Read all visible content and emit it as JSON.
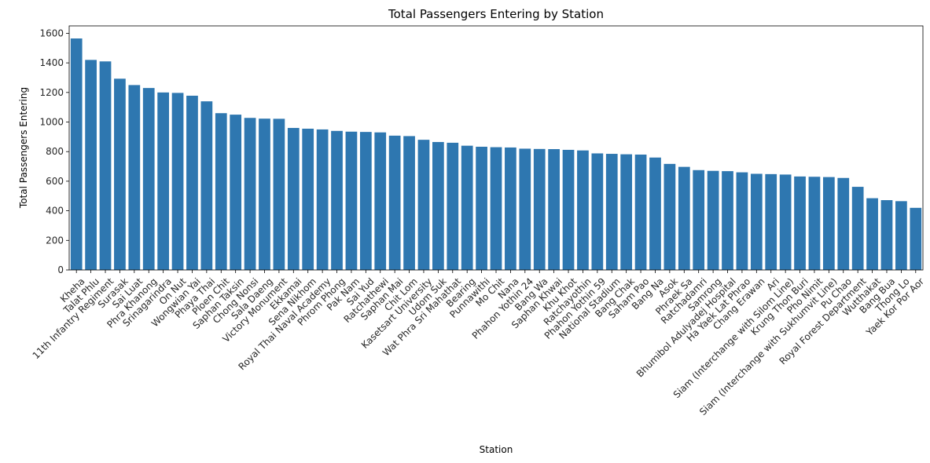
{
  "chart_data": {
    "type": "bar",
    "title": "Total Passengers Entering by Station",
    "xlabel": "Station",
    "ylabel": "Total Passengers Entering",
    "ylim": [
      0,
      1650
    ],
    "yticks": [
      0,
      200,
      400,
      600,
      800,
      1000,
      1200,
      1400,
      1600
    ],
    "bar_color": "#2e77b0",
    "grid": false,
    "categories": [
      "Kheha",
      "Talat Phlu",
      "11th Infantry Regiment",
      "Surasak",
      "Sai Luat",
      "Phra Khanong",
      "Srinagarindra",
      "On Nut",
      "Wongwian Yai",
      "Phaya Thai",
      "Ploen Chit",
      "Saphan Taksin",
      "Chong Nonsi",
      "Sala Daeng",
      "Victory Monument",
      "Ekkamai",
      "Sena Nikhom",
      "Royal Thai Naval Academy",
      "Phrom Phong",
      "Pak Nam",
      "Sai Yud",
      "Ratchathewi",
      "Saphan Mai",
      "Chit Lom",
      "Kasetsart University",
      "Udom Suk",
      "Wat Phra Sri Mahathat",
      "Bearing",
      "Punnawithi",
      "Mo Chit",
      "Nana",
      "Phahon Yothin 24",
      "Bang Wa",
      "Saphan Khwai",
      "Khu Khot",
      "Ratchayothin",
      "Phahon Yothin 59",
      "National Stadium",
      "Bang Chak",
      "Saham Pao",
      "Bang Na",
      "Asok",
      "Phraek Sa",
      "Ratchadamri",
      "Samrong",
      "Bhumibol Adulyadej Hospital",
      "Ha Yaek Lat Phrao",
      "Chang Erawan",
      "Ari",
      "Siam (Interchange with Silom Line)",
      "Krung Thon Buri",
      "Pho Nimit",
      "Siam (Interchange with Sukhumvit Line)",
      "Pu Chao",
      "Royal Forest Department",
      "Wutthakat",
      "Bang Bua",
      "Thong Lo",
      "Yaek Kor Por Aor"
    ],
    "values": [
      1565,
      1420,
      1410,
      1293,
      1250,
      1230,
      1200,
      1197,
      1178,
      1140,
      1060,
      1050,
      1028,
      1023,
      1022,
      960,
      955,
      950,
      940,
      935,
      933,
      930,
      908,
      905,
      880,
      865,
      860,
      840,
      833,
      830,
      828,
      820,
      818,
      817,
      812,
      808,
      788,
      785,
      782,
      780,
      760,
      717,
      697,
      675,
      670,
      668,
      660,
      650,
      648,
      645,
      632,
      630,
      628,
      622,
      562,
      485,
      472,
      465,
      420
    ]
  }
}
